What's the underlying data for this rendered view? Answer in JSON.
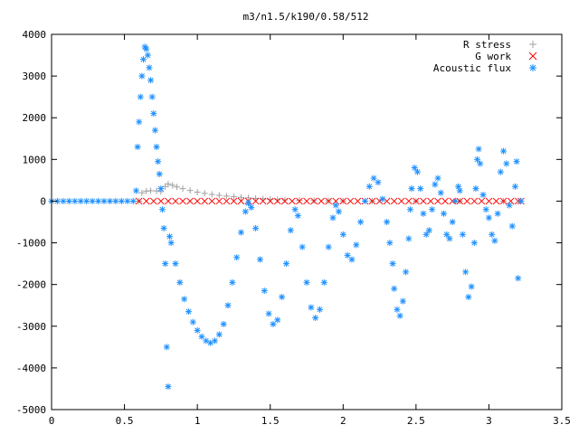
{
  "chart_data": {
    "type": "scatter",
    "title": "m3/n1.5/k190/0.58/512",
    "xlabel": "",
    "ylabel": "",
    "xlim": [
      0,
      3.5
    ],
    "ylim": [
      -5000,
      4000
    ],
    "x_ticks": [
      {
        "value": 0,
        "label": "0"
      },
      {
        "value": 0.5,
        "label": "0.5"
      },
      {
        "value": 1,
        "label": "1"
      },
      {
        "value": 1.5,
        "label": "1.5"
      },
      {
        "value": 2,
        "label": "2"
      },
      {
        "value": 2.5,
        "label": "2.5"
      },
      {
        "value": 3,
        "label": "3"
      },
      {
        "value": 3.5,
        "label": "3.5"
      }
    ],
    "y_ticks": [
      {
        "value": 4000,
        "label": "4000"
      },
      {
        "value": 3000,
        "label": "3000"
      },
      {
        "value": 2000,
        "label": "2000"
      },
      {
        "value": 1000,
        "label": "1000"
      },
      {
        "value": 0,
        "label": "0"
      },
      {
        "value": -1000,
        "label": "-1000"
      },
      {
        "value": -2000,
        "label": "-2000"
      },
      {
        "value": -3000,
        "label": "-3000"
      },
      {
        "value": -4000,
        "label": "-4000"
      },
      {
        "value": -5000,
        "label": "-5000"
      }
    ],
    "grid": false,
    "legend_position": "top-right",
    "series": [
      {
        "name": "R stress",
        "marker": "plus",
        "color": "#a0a0a0",
        "points": [
          [
            0.6,
            0
          ],
          [
            0.62,
            200
          ],
          [
            0.65,
            240
          ],
          [
            0.68,
            250
          ],
          [
            0.72,
            245
          ],
          [
            0.75,
            230
          ],
          [
            0.78,
            350
          ],
          [
            0.8,
            410
          ],
          [
            0.83,
            380
          ],
          [
            0.86,
            340
          ],
          [
            0.9,
            300
          ],
          [
            0.95,
            255
          ],
          [
            1.0,
            215
          ],
          [
            1.05,
            185
          ],
          [
            1.1,
            160
          ],
          [
            1.15,
            140
          ],
          [
            1.2,
            120
          ],
          [
            1.25,
            105
          ],
          [
            1.3,
            90
          ],
          [
            1.35,
            78
          ],
          [
            1.4,
            66
          ],
          [
            1.45,
            55
          ],
          [
            1.5,
            45
          ],
          [
            1.55,
            37
          ],
          [
            1.6,
            30
          ],
          [
            1.7,
            20
          ],
          [
            1.8,
            13
          ],
          [
            1.9,
            8
          ],
          [
            2.0,
            4
          ],
          [
            2.2,
            2
          ],
          [
            2.5,
            1
          ],
          [
            2.8,
            0
          ],
          [
            3.1,
            0
          ],
          [
            3.22,
            0
          ]
        ]
      },
      {
        "name": "G work",
        "marker": "cross",
        "color": "#ff0000",
        "points": [
          [
            0.6,
            0
          ],
          [
            0.65,
            0
          ],
          [
            0.7,
            0
          ],
          [
            0.75,
            0
          ],
          [
            0.8,
            0
          ],
          [
            0.85,
            0
          ],
          [
            0.9,
            0
          ],
          [
            0.95,
            0
          ],
          [
            1.0,
            0
          ],
          [
            1.05,
            0
          ],
          [
            1.1,
            0
          ],
          [
            1.15,
            0
          ],
          [
            1.2,
            0
          ],
          [
            1.25,
            0
          ],
          [
            1.3,
            0
          ],
          [
            1.35,
            0
          ],
          [
            1.4,
            0
          ],
          [
            1.45,
            0
          ],
          [
            1.5,
            0
          ],
          [
            1.55,
            0
          ],
          [
            1.6,
            0
          ],
          [
            1.65,
            0
          ],
          [
            1.7,
            0
          ],
          [
            1.75,
            0
          ],
          [
            1.8,
            0
          ],
          [
            1.85,
            0
          ],
          [
            1.9,
            0
          ],
          [
            1.95,
            0
          ],
          [
            2.0,
            0
          ],
          [
            2.05,
            0
          ],
          [
            2.1,
            0
          ],
          [
            2.15,
            0
          ],
          [
            2.2,
            0
          ],
          [
            2.25,
            0
          ],
          [
            2.3,
            0
          ],
          [
            2.35,
            0
          ],
          [
            2.4,
            0
          ],
          [
            2.45,
            0
          ],
          [
            2.5,
            0
          ],
          [
            2.55,
            0
          ],
          [
            2.6,
            0
          ],
          [
            2.65,
            0
          ],
          [
            2.7,
            0
          ],
          [
            2.75,
            0
          ],
          [
            2.8,
            0
          ],
          [
            2.85,
            0
          ],
          [
            2.9,
            0
          ],
          [
            2.95,
            0
          ],
          [
            3.0,
            0
          ],
          [
            3.05,
            0
          ],
          [
            3.1,
            0
          ],
          [
            3.15,
            0
          ],
          [
            3.2,
            0
          ],
          [
            3.22,
            0
          ]
        ]
      },
      {
        "name": "Acoustic flux",
        "marker": "star",
        "color": "#1e90ff",
        "points": [
          [
            0.0,
            0
          ],
          [
            0.04,
            0
          ],
          [
            0.08,
            0
          ],
          [
            0.12,
            0
          ],
          [
            0.16,
            0
          ],
          [
            0.2,
            0
          ],
          [
            0.24,
            0
          ],
          [
            0.28,
            0
          ],
          [
            0.32,
            0
          ],
          [
            0.36,
            0
          ],
          [
            0.4,
            0
          ],
          [
            0.44,
            0
          ],
          [
            0.48,
            0
          ],
          [
            0.52,
            0
          ],
          [
            0.56,
            0
          ],
          [
            0.58,
            250
          ],
          [
            0.59,
            1300
          ],
          [
            0.6,
            1900
          ],
          [
            0.61,
            2500
          ],
          [
            0.62,
            3000
          ],
          [
            0.63,
            3400
          ],
          [
            0.64,
            3700
          ],
          [
            0.65,
            3650
          ],
          [
            0.66,
            3500
          ],
          [
            0.67,
            3200
          ],
          [
            0.68,
            2900
          ],
          [
            0.69,
            2500
          ],
          [
            0.7,
            2100
          ],
          [
            0.71,
            1700
          ],
          [
            0.72,
            1300
          ],
          [
            0.73,
            950
          ],
          [
            0.74,
            650
          ],
          [
            0.75,
            300
          ],
          [
            0.76,
            -200
          ],
          [
            0.77,
            -650
          ],
          [
            0.78,
            -1500
          ],
          [
            0.79,
            -3500
          ],
          [
            0.8,
            -4450
          ],
          [
            0.81,
            -850
          ],
          [
            0.82,
            -1000
          ],
          [
            0.85,
            -1500
          ],
          [
            0.88,
            -1950
          ],
          [
            0.91,
            -2350
          ],
          [
            0.94,
            -2650
          ],
          [
            0.97,
            -2900
          ],
          [
            1.0,
            -3100
          ],
          [
            1.03,
            -3250
          ],
          [
            1.06,
            -3350
          ],
          [
            1.09,
            -3400
          ],
          [
            1.12,
            -3350
          ],
          [
            1.15,
            -3200
          ],
          [
            1.18,
            -2950
          ],
          [
            1.21,
            -2500
          ],
          [
            1.24,
            -1950
          ],
          [
            1.27,
            -1350
          ],
          [
            1.3,
            -750
          ],
          [
            1.33,
            -250
          ],
          [
            1.35,
            -50
          ],
          [
            1.37,
            -150
          ],
          [
            1.4,
            -650
          ],
          [
            1.43,
            -1400
          ],
          [
            1.46,
            -2150
          ],
          [
            1.49,
            -2700
          ],
          [
            1.52,
            -2950
          ],
          [
            1.55,
            -2850
          ],
          [
            1.58,
            -2300
          ],
          [
            1.61,
            -1500
          ],
          [
            1.64,
            -700
          ],
          [
            1.67,
            -200
          ],
          [
            1.69,
            -350
          ],
          [
            1.72,
            -1100
          ],
          [
            1.75,
            -1950
          ],
          [
            1.78,
            -2550
          ],
          [
            1.81,
            -2800
          ],
          [
            1.84,
            -2600
          ],
          [
            1.87,
            -1950
          ],
          [
            1.9,
            -1100
          ],
          [
            1.93,
            -400
          ],
          [
            1.95,
            -100
          ],
          [
            1.97,
            -250
          ],
          [
            2.0,
            -800
          ],
          [
            2.03,
            -1300
          ],
          [
            2.06,
            -1400
          ],
          [
            2.09,
            -1050
          ],
          [
            2.12,
            -500
          ],
          [
            2.15,
            0
          ],
          [
            2.18,
            350
          ],
          [
            2.21,
            550
          ],
          [
            2.24,
            450
          ],
          [
            2.27,
            50
          ],
          [
            2.3,
            -500
          ],
          [
            2.32,
            -1000
          ],
          [
            2.34,
            -1500
          ],
          [
            2.35,
            -2100
          ],
          [
            2.37,
            -2600
          ],
          [
            2.39,
            -2750
          ],
          [
            2.41,
            -2400
          ],
          [
            2.43,
            -1700
          ],
          [
            2.45,
            -900
          ],
          [
            2.46,
            -200
          ],
          [
            2.47,
            300
          ],
          [
            2.49,
            800
          ],
          [
            2.51,
            700
          ],
          [
            2.53,
            300
          ],
          [
            2.55,
            -300
          ],
          [
            2.57,
            -800
          ],
          [
            2.59,
            -700
          ],
          [
            2.61,
            -200
          ],
          [
            2.63,
            400
          ],
          [
            2.65,
            550
          ],
          [
            2.67,
            200
          ],
          [
            2.69,
            -300
          ],
          [
            2.71,
            -800
          ],
          [
            2.73,
            -900
          ],
          [
            2.75,
            -500
          ],
          [
            2.77,
            0
          ],
          [
            2.79,
            350
          ],
          [
            2.8,
            250
          ],
          [
            2.82,
            -800
          ],
          [
            2.84,
            -1700
          ],
          [
            2.86,
            -2300
          ],
          [
            2.88,
            -2050
          ],
          [
            2.9,
            -1000
          ],
          [
            2.91,
            300
          ],
          [
            2.92,
            1000
          ],
          [
            2.93,
            1250
          ],
          [
            2.94,
            900
          ],
          [
            2.96,
            150
          ],
          [
            2.98,
            -200
          ],
          [
            3.0,
            -400
          ],
          [
            3.02,
            -800
          ],
          [
            3.04,
            -950
          ],
          [
            3.06,
            -300
          ],
          [
            3.08,
            700
          ],
          [
            3.1,
            1200
          ],
          [
            3.12,
            900
          ],
          [
            3.14,
            -100
          ],
          [
            3.16,
            -600
          ],
          [
            3.18,
            350
          ],
          [
            3.19,
            950
          ],
          [
            3.2,
            -1850
          ],
          [
            3.22,
            0
          ]
        ]
      }
    ]
  }
}
